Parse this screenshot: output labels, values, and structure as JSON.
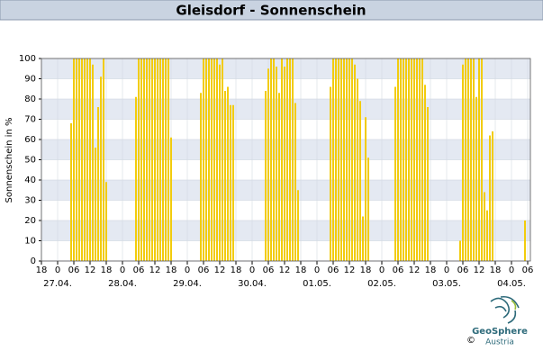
{
  "chart_data": {
    "type": "bar",
    "title": "Gleisdorf - Sonnenschein",
    "y_label": "Sonnenschein in %",
    "x": [
      11,
      12,
      13,
      14,
      15,
      16,
      17,
      18,
      19,
      20,
      21,
      22,
      23,
      24,
      35,
      36,
      37,
      38,
      39,
      40,
      41,
      42,
      43,
      44,
      45,
      46,
      47,
      48,
      59,
      60,
      61,
      62,
      63,
      64,
      65,
      66,
      67,
      68,
      69,
      70,
      71,
      83,
      84,
      85,
      86,
      87,
      88,
      89,
      90,
      91,
      92,
      93,
      94,
      95,
      107,
      108,
      109,
      110,
      111,
      112,
      113,
      114,
      115,
      116,
      117,
      118,
      119,
      120,
      121,
      131,
      132,
      133,
      134,
      135,
      136,
      137,
      138,
      139,
      140,
      141,
      142,
      143,
      155,
      156,
      157,
      158,
      159,
      160,
      161,
      162,
      163,
      164,
      165,
      166,
      167,
      179
    ],
    "values": [
      68,
      100,
      100,
      100,
      100,
      100,
      100,
      100,
      97,
      56,
      76,
      91,
      100,
      39,
      81,
      100,
      100,
      100,
      100,
      100,
      100,
      100,
      100,
      100,
      100,
      100,
      100,
      61,
      83,
      100,
      100,
      100,
      100,
      100,
      100,
      97,
      100,
      84,
      86,
      77,
      77,
      84,
      95,
      100,
      100,
      96,
      83,
      100,
      96,
      100,
      100,
      100,
      78,
      35,
      86,
      100,
      100,
      100,
      100,
      100,
      100,
      100,
      100,
      97,
      90,
      79,
      22,
      71,
      51,
      86,
      100,
      100,
      100,
      100,
      100,
      100,
      100,
      100,
      100,
      100,
      87,
      76,
      10,
      97,
      100,
      100,
      100,
      100,
      81,
      100,
      100,
      34,
      25,
      62,
      64,
      20
    ],
    "color": "#f2cc0c",
    "ylim": [
      0,
      100
    ],
    "yticks": [
      0,
      10,
      20,
      30,
      40,
      50,
      60,
      70,
      80,
      90,
      100
    ],
    "xlim": [
      0,
      181
    ],
    "xticks": [
      {
        "value": 0,
        "label": "18"
      },
      {
        "value": 6,
        "label": "0"
      },
      {
        "value": 12,
        "label": "06"
      },
      {
        "value": 18,
        "label": "12"
      },
      {
        "value": 24,
        "label": "18"
      },
      {
        "value": 30,
        "label": "0"
      },
      {
        "value": 36,
        "label": "06"
      },
      {
        "value": 42,
        "label": "12"
      },
      {
        "value": 48,
        "label": "18"
      },
      {
        "value": 54,
        "label": "0"
      },
      {
        "value": 60,
        "label": "06"
      },
      {
        "value": 66,
        "label": "12"
      },
      {
        "value": 72,
        "label": "18"
      },
      {
        "value": 78,
        "label": "0"
      },
      {
        "value": 84,
        "label": "06"
      },
      {
        "value": 90,
        "label": "12"
      },
      {
        "value": 96,
        "label": "18"
      },
      {
        "value": 102,
        "label": "0"
      },
      {
        "value": 108,
        "label": "06"
      },
      {
        "value": 114,
        "label": "12"
      },
      {
        "value": 120,
        "label": "18"
      },
      {
        "value": 126,
        "label": "0"
      },
      {
        "value": 132,
        "label": "06"
      },
      {
        "value": 138,
        "label": "12"
      },
      {
        "value": 144,
        "label": "18"
      },
      {
        "value": 150,
        "label": "0"
      },
      {
        "value": 156,
        "label": "06"
      },
      {
        "value": 162,
        "label": "12"
      },
      {
        "value": 168,
        "label": "18"
      },
      {
        "value": 174,
        "label": "0"
      },
      {
        "value": 180,
        "label": "06"
      }
    ],
    "date_labels": [
      {
        "value": 6,
        "label": "27.04."
      },
      {
        "value": 30,
        "label": "28.04."
      },
      {
        "value": 54,
        "label": "29.04."
      },
      {
        "value": 78,
        "label": "30.04."
      },
      {
        "value": 102,
        "label": "01.05."
      },
      {
        "value": 126,
        "label": "02.05."
      },
      {
        "value": 150,
        "label": "03.05."
      },
      {
        "value": 174,
        "label": "04.05."
      }
    ],
    "grid": true
  },
  "logo": {
    "name": "GeoSphere",
    "sub": "Austria",
    "copyright": "©"
  }
}
